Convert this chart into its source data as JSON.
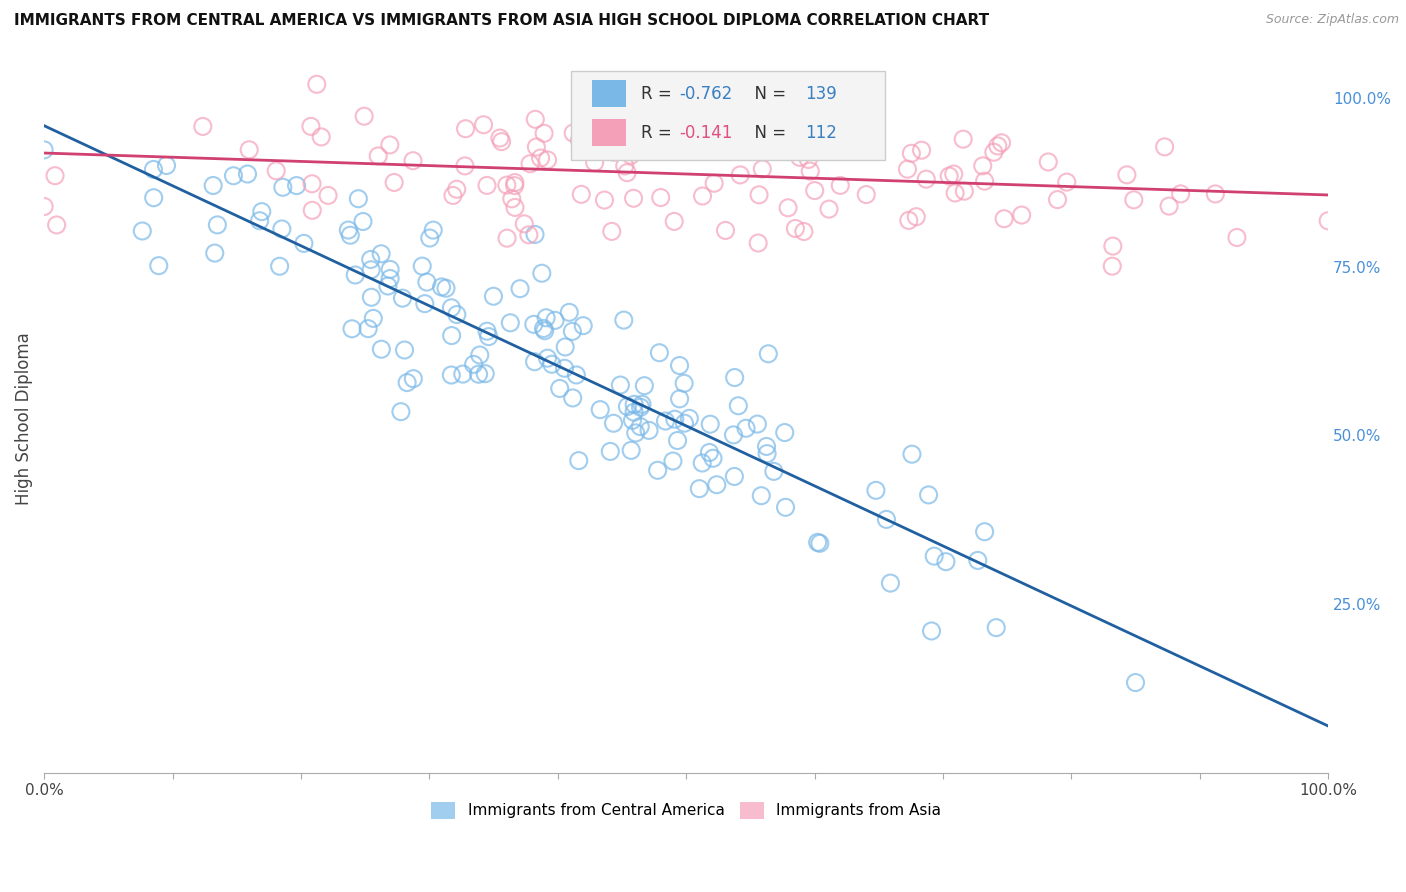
{
  "title": "IMMIGRANTS FROM CENTRAL AMERICA VS IMMIGRANTS FROM ASIA HIGH SCHOOL DIPLOMA CORRELATION CHART",
  "source": "Source: ZipAtlas.com",
  "ylabel": "High School Diploma",
  "legend_label1": "Immigrants from Central America",
  "legend_label2": "Immigrants from Asia",
  "r1": -0.762,
  "n1": 139,
  "r2": -0.141,
  "n2": 112,
  "color1": "#7ab8e8",
  "color2": "#f4a0b8",
  "trendline1_color": "#2060a0",
  "trendline2_color": "#d04070",
  "background": "#ffffff",
  "grid_color": "#cccccc",
  "xlim": [
    0.0,
    1.0
  ],
  "ylim": [
    0.0,
    1.05
  ],
  "x_ticks": [
    0.0,
    0.1,
    0.2,
    0.3,
    0.4,
    0.5,
    0.6,
    0.7,
    0.8,
    0.9,
    1.0
  ],
  "x_tick_labels_show": {
    "0.0": "0.0%",
    "1.0": "100.0%"
  },
  "y_ticks_right": [
    0.25,
    0.5,
    0.75,
    1.0
  ],
  "y_tick_labels_right": [
    "25.0%",
    "50.0%",
    "75.0%",
    "100.0%"
  ],
  "legend_box_color": "#f0f0f0",
  "legend_box_edge": "#cccccc",
  "r_color_blue": "#3a7fc1",
  "r_color_pink": "#e05080",
  "n_color": "#3a7fc1"
}
